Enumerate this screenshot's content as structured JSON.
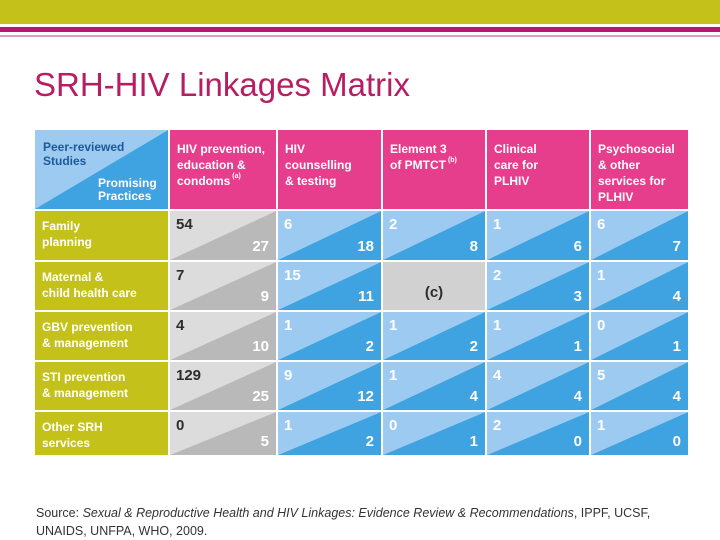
{
  "title": "SRH-HIV Linkages Matrix",
  "corner": {
    "top_label": "Peer-reviewed\nStudies",
    "bottom_label": "Promising\nPractices"
  },
  "columns": [
    {
      "label": "HIV prevention,\neducation &\ncondoms",
      "note": "(a)"
    },
    {
      "label": "HIV\ncounselling\n& testing",
      "note": ""
    },
    {
      "label": "Element 3\nof PMTCT",
      "note": "(b)"
    },
    {
      "label": "Clinical\ncare for\nPLHIV",
      "note": ""
    },
    {
      "label": "Psychosocial\n& other\nservices for\nPLHIV",
      "note": ""
    }
  ],
  "rows": [
    {
      "label": "Family\nplanning",
      "cells": [
        {
          "peer": "54",
          "prom": "27"
        },
        {
          "peer": "6",
          "prom": "18"
        },
        {
          "peer": "2",
          "prom": "8"
        },
        {
          "peer": "1",
          "prom": "6"
        },
        {
          "peer": "6",
          "prom": "7"
        }
      ]
    },
    {
      "label": "Maternal &\nchild health care",
      "cells": [
        {
          "peer": "7",
          "prom": "9"
        },
        {
          "peer": "15",
          "prom": "11"
        },
        {
          "special": "(c)"
        },
        {
          "peer": "2",
          "prom": "3"
        },
        {
          "peer": "1",
          "prom": "4"
        }
      ]
    },
    {
      "label": "GBV prevention\n& management",
      "cells": [
        {
          "peer": "4",
          "prom": "10"
        },
        {
          "peer": "1",
          "prom": "2"
        },
        {
          "peer": "1",
          "prom": "2"
        },
        {
          "peer": "1",
          "prom": "1"
        },
        {
          "peer": "0",
          "prom": "1"
        }
      ]
    },
    {
      "label": "STI prevention\n&  management",
      "cells": [
        {
          "peer": "129",
          "prom": "25"
        },
        {
          "peer": "9",
          "prom": "12"
        },
        {
          "peer": "1",
          "prom": "4"
        },
        {
          "peer": "4",
          "prom": "4"
        },
        {
          "peer": "5",
          "prom": "4"
        }
      ]
    },
    {
      "label": "Other SRH\nservices",
      "cells": [
        {
          "peer": "0",
          "prom": "5"
        },
        {
          "peer": "1",
          "prom": "2"
        },
        {
          "peer": "0",
          "prom": "1"
        },
        {
          "peer": "2",
          "prom": "0"
        },
        {
          "peer": "1",
          "prom": "0"
        }
      ]
    }
  ],
  "colors": {
    "title": "#b71d63",
    "header_pink": "#e63d8c",
    "row_olive": "#c4c21a",
    "blue_light": "#9ccaf0",
    "blue_dark": "#3ea3e0",
    "gray_light": "#dcdcdc",
    "gray_dark": "#b9b9b9"
  },
  "source": {
    "prefix": "Source: ",
    "title_italic": "Sexual & Reproductive Health and HIV Linkages: Evidence Review & Recommendations",
    "suffix": ", IPPF, UCSF, UNAIDS, UNFPA, WHO, 2009."
  }
}
